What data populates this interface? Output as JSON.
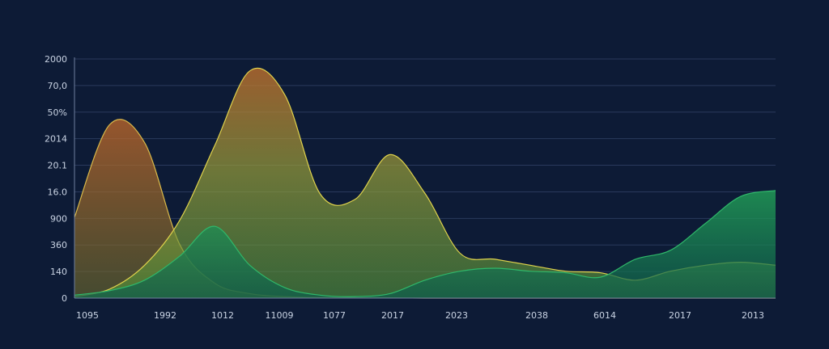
{
  "chart_data": {
    "type": "area",
    "title": "",
    "xlabel": "",
    "ylabel": "",
    "ylim": [
      0,
      8
    ],
    "grid": true,
    "legend": "none",
    "y_tick_labels": [
      "0",
      "140",
      "360",
      "900",
      "16.0",
      "20.1",
      "2014",
      "50%",
      "70,0",
      "2000"
    ],
    "x_tick_labels": [
      "1095",
      "1992",
      "1012",
      "11009",
      "1077",
      "2017",
      "2023",
      "2038",
      "6014",
      "2017",
      "2013"
    ],
    "x": [
      0,
      0.5,
      1,
      1.5,
      2,
      2.5,
      3,
      3.5,
      4,
      4.5,
      5,
      5.5,
      6,
      6.5,
      7,
      7.5,
      8,
      8.5,
      9,
      9.5,
      10
    ],
    "series": [
      {
        "color": "#b86a2e",
        "values": [
          2.7,
          5.8,
          5.2,
          1.8,
          0.5,
          0.15,
          0.05,
          0.02,
          0.01,
          0.01,
          0.0,
          0.0,
          0.0,
          0.0,
          0.0,
          0.0,
          0.0,
          0.0,
          0.0,
          0.0,
          0.0
        ]
      },
      {
        "color": "#b8a032",
        "values": [
          0.05,
          0.3,
          1.1,
          2.6,
          5.1,
          7.6,
          6.8,
          3.5,
          3.3,
          4.8,
          3.5,
          1.5,
          1.3,
          1.1,
          0.9,
          0.85,
          0.6,
          0.9,
          1.1,
          1.2,
          1.1
        ]
      },
      {
        "color": "#1e8a52",
        "values": [
          0.1,
          0.25,
          0.6,
          1.4,
          2.4,
          1.1,
          0.35,
          0.1,
          0.05,
          0.15,
          0.6,
          0.9,
          1.0,
          0.9,
          0.85,
          0.7,
          1.3,
          1.6,
          2.5,
          3.4,
          3.6
        ]
      }
    ]
  }
}
